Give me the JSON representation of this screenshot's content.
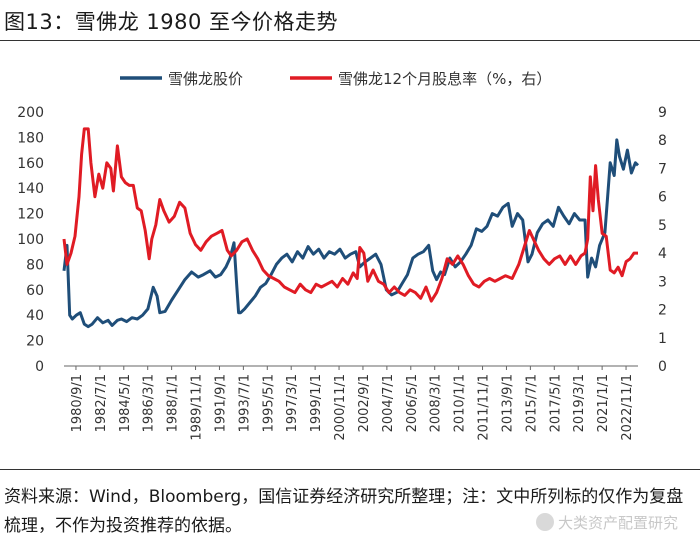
{
  "figure": {
    "title": "图13：雪佛龙 1980 至今价格走势",
    "note": "资料来源：Wind，Bloomberg，国信证券经济研究所整理；注：文中所列标的仅作为复盘梳理，不作为投资推荐的依据。",
    "watermark": "大类资产配置研究"
  },
  "chart_data": {
    "type": "line",
    "title": "",
    "legend_position": "top",
    "x_ticks": [
      "1980/9/1",
      "1982/7/1",
      "1984/5/1",
      "1986/3/1",
      "1988/1/1",
      "1989/11/1",
      "1991/9/1",
      "1993/7/1",
      "1995/5/1",
      "1997/3/1",
      "1999/1/1",
      "2000/11/1",
      "2002/9/1",
      "2004/7/1",
      "2006/5/1",
      "2008/3/1",
      "2010/1/1",
      "2011/11/1",
      "2013/9/1",
      "2015/7/1",
      "2017/5/1",
      "2019/3/1",
      "2021/1/1",
      "2022/11/1"
    ],
    "x_range": [
      1980.67,
      2024.0
    ],
    "y_left": {
      "label": "",
      "range": [
        0,
        200
      ],
      "ticks": [
        0,
        20,
        40,
        60,
        80,
        100,
        120,
        140,
        160,
        180,
        200
      ]
    },
    "y_right": {
      "label": "",
      "range": [
        0,
        9
      ],
      "ticks": [
        0,
        1,
        2,
        3,
        4,
        5,
        6,
        7,
        8,
        9
      ]
    },
    "series": [
      {
        "name": "雪佛龙股价",
        "axis": "left",
        "color": "#1f4e79",
        "x": [
          1980.67,
          1980.9,
          1981.1,
          1981.3,
          1981.6,
          1981.9,
          1982.2,
          1982.5,
          1982.8,
          1983.2,
          1983.6,
          1984.0,
          1984.3,
          1984.7,
          1985.0,
          1985.4,
          1985.8,
          1986.2,
          1986.6,
          1987.0,
          1987.4,
          1987.7,
          1987.9,
          1988.3,
          1988.8,
          1989.3,
          1989.8,
          1990.3,
          1990.8,
          1991.2,
          1991.7,
          1992.1,
          1992.5,
          1992.9,
          1993.2,
          1993.5,
          1993.7,
          1993.85,
          1994.0,
          1994.3,
          1994.7,
          1995.1,
          1995.5,
          1995.9,
          1996.3,
          1996.7,
          1997.1,
          1997.5,
          1997.9,
          1998.3,
          1998.7,
          1999.1,
          1999.5,
          1999.9,
          2000.3,
          2000.7,
          2001.1,
          2001.5,
          2001.9,
          2002.3,
          2002.7,
          2003.0,
          2003.4,
          2003.8,
          2004.2,
          2004.6,
          2005.0,
          2005.4,
          2005.8,
          2006.2,
          2006.6,
          2007.0,
          2007.4,
          2007.8,
          2008.2,
          2008.5,
          2008.8,
          2009.1,
          2009.4,
          2009.8,
          2010.2,
          2010.6,
          2011.0,
          2011.4,
          2011.8,
          2012.2,
          2012.6,
          2013.0,
          2013.4,
          2013.8,
          2014.2,
          2014.5,
          2014.9,
          2015.3,
          2015.7,
          2016.0,
          2016.4,
          2016.8,
          2017.2,
          2017.6,
          2018.0,
          2018.4,
          2018.8,
          2019.2,
          2019.6,
          2020.0,
          2020.2,
          2020.5,
          2020.8,
          2021.1,
          2021.5,
          2021.9,
          2022.2,
          2022.4,
          2022.6,
          2022.9,
          2023.2,
          2023.5,
          2023.8,
          2024.0
        ],
        "values": [
          75,
          95,
          40,
          37,
          40,
          42,
          33,
          31,
          33,
          38,
          34,
          36,
          32,
          36,
          37,
          35,
          38,
          37,
          40,
          45,
          62,
          55,
          42,
          43,
          52,
          60,
          68,
          74,
          70,
          72,
          75,
          70,
          72,
          78,
          85,
          97,
          65,
          42,
          42,
          45,
          50,
          55,
          62,
          65,
          72,
          80,
          85,
          88,
          82,
          90,
          85,
          94,
          88,
          92,
          85,
          90,
          88,
          92,
          85,
          88,
          90,
          78,
          82,
          85,
          88,
          80,
          60,
          56,
          58,
          65,
          72,
          85,
          88,
          90,
          95,
          75,
          68,
          74,
          72,
          85,
          78,
          82,
          88,
          95,
          108,
          106,
          110,
          120,
          118,
          125,
          128,
          110,
          120,
          115,
          82,
          88,
          105,
          112,
          115,
          110,
          125,
          118,
          112,
          120,
          115,
          115,
          70,
          85,
          78,
          95,
          105,
          160,
          150,
          178,
          165,
          155,
          170,
          152,
          160,
          158
        ]
      },
      {
        "name": "雪佛龙12个月股息率（%，右）",
        "axis": "right",
        "color": "#e01b24",
        "x": [
          1980.67,
          1980.9,
          1981.2,
          1981.5,
          1981.8,
          1982.0,
          1982.2,
          1982.5,
          1982.7,
          1983.0,
          1983.3,
          1983.6,
          1983.9,
          1984.2,
          1984.4,
          1984.7,
          1985.0,
          1985.3,
          1985.6,
          1985.9,
          1986.2,
          1986.5,
          1986.8,
          1987.1,
          1987.3,
          1987.6,
          1987.9,
          1988.2,
          1988.6,
          1989.0,
          1989.4,
          1989.8,
          1990.2,
          1990.6,
          1991.0,
          1991.4,
          1991.8,
          1992.2,
          1992.6,
          1993.0,
          1993.3,
          1993.7,
          1994.1,
          1994.5,
          1994.9,
          1995.3,
          1995.7,
          1996.1,
          1996.5,
          1996.9,
          1997.3,
          1997.7,
          1998.1,
          1998.5,
          1998.9,
          1999.3,
          1999.7,
          2000.1,
          2000.5,
          2000.9,
          2001.3,
          2001.7,
          2002.1,
          2002.5,
          2002.8,
          2003.0,
          2003.3,
          2003.6,
          2004.0,
          2004.4,
          2004.8,
          2005.2,
          2005.6,
          2006.0,
          2006.4,
          2006.8,
          2007.2,
          2007.6,
          2008.0,
          2008.4,
          2008.8,
          2009.2,
          2009.6,
          2010.0,
          2010.4,
          2010.8,
          2011.2,
          2011.6,
          2012.0,
          2012.4,
          2012.8,
          2013.2,
          2013.6,
          2014.0,
          2014.5,
          2015.0,
          2015.4,
          2015.8,
          2016.1,
          2016.5,
          2016.9,
          2017.3,
          2017.7,
          2018.1,
          2018.5,
          2018.9,
          2019.3,
          2019.7,
          2020.0,
          2020.2,
          2020.4,
          2020.6,
          2020.8,
          2021.0,
          2021.3,
          2021.6,
          2021.9,
          2022.2,
          2022.5,
          2022.8,
          2023.1,
          2023.4,
          2023.7,
          2024.0
        ],
        "values": [
          4.5,
          3.6,
          4.0,
          4.6,
          6.0,
          7.5,
          8.4,
          8.4,
          7.2,
          6.0,
          6.8,
          6.3,
          7.2,
          7.0,
          6.2,
          7.8,
          6.7,
          6.5,
          6.4,
          6.4,
          5.6,
          5.5,
          4.8,
          3.8,
          4.5,
          5.0,
          5.9,
          5.5,
          5.1,
          5.3,
          5.8,
          5.6,
          4.7,
          4.3,
          4.1,
          4.4,
          4.6,
          4.7,
          4.8,
          4.1,
          3.9,
          4.1,
          4.4,
          4.5,
          4.1,
          3.8,
          3.4,
          3.2,
          3.1,
          3.0,
          2.8,
          2.7,
          2.6,
          2.9,
          2.7,
          2.6,
          2.9,
          2.8,
          2.9,
          3.0,
          2.8,
          3.1,
          2.9,
          3.3,
          3.1,
          4.2,
          4.0,
          3.0,
          3.4,
          3.0,
          2.9,
          2.6,
          2.8,
          2.6,
          2.5,
          2.7,
          2.6,
          2.4,
          2.8,
          2.3,
          2.6,
          3.1,
          3.8,
          3.6,
          3.9,
          3.6,
          3.2,
          2.9,
          2.8,
          3.0,
          3.1,
          3.0,
          3.1,
          3.2,
          3.1,
          3.6,
          4.2,
          4.8,
          4.5,
          4.1,
          3.8,
          3.6,
          3.8,
          3.9,
          3.6,
          3.9,
          3.6,
          3.9,
          4.0,
          4.5,
          6.7,
          5.5,
          7.1,
          5.9,
          4.7,
          4.6,
          3.4,
          3.3,
          3.5,
          3.2,
          3.7,
          3.8,
          4.0,
          4.0
        ]
      }
    ]
  }
}
